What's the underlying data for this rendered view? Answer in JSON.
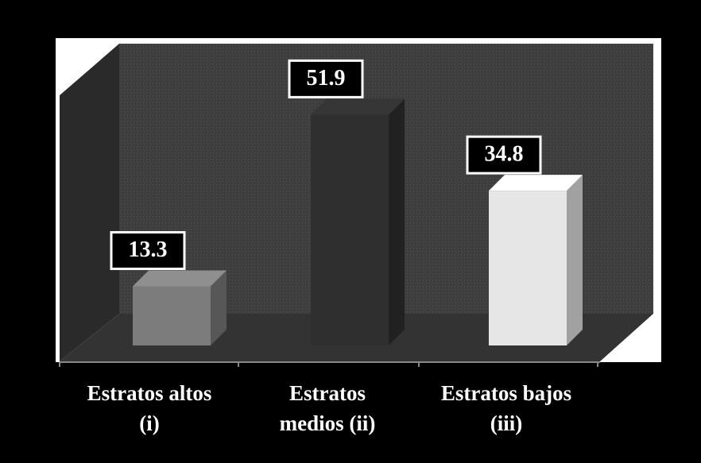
{
  "chart_data": {
    "type": "bar3d",
    "categories": [
      [
        "Estratos altos",
        "(i)"
      ],
      [
        "Estratos",
        "medios (ii)"
      ],
      [
        "Estratos bajos",
        "(iii)"
      ]
    ],
    "values": [
      13.3,
      51.9,
      34.8
    ],
    "colors": [
      "#7c7c7c",
      "#2f2f2f",
      "#e6e6e6"
    ]
  }
}
